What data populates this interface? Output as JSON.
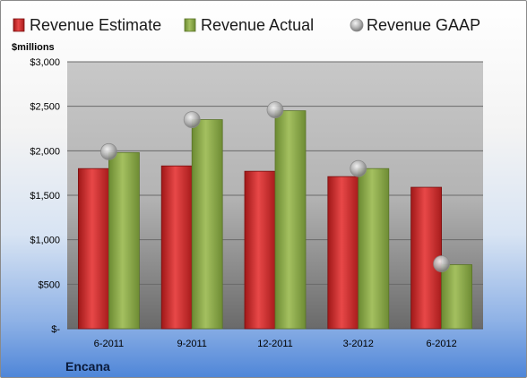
{
  "company": "Encana",
  "chart_data": {
    "type": "bar",
    "unit_label": "$millions",
    "categories": [
      "6-2011",
      "9-2011",
      "12-2011",
      "3-2012",
      "6-2012"
    ],
    "series": [
      {
        "name": "Revenue Estimate",
        "kind": "bar",
        "color": "#d42a2a",
        "values": [
          1800,
          1830,
          1770,
          1710,
          1590
        ]
      },
      {
        "name": "Revenue Actual",
        "kind": "bar",
        "color": "#8fad4a",
        "values": [
          1980,
          2350,
          2450,
          1800,
          720
        ]
      },
      {
        "name": "Revenue GAAP",
        "kind": "marker",
        "color": "#b8b8b8",
        "values": [
          1990,
          2350,
          2460,
          1800,
          730
        ]
      }
    ],
    "ylim": [
      0,
      3000
    ],
    "yticks": [
      0,
      500,
      1000,
      1500,
      2000,
      2500,
      3000
    ],
    "ytick_labels": [
      "$-",
      "$500",
      "$1,000",
      "$1,500",
      "$2,000",
      "$2,500",
      "$3,000"
    ],
    "grid": true,
    "legend_position": "top"
  }
}
